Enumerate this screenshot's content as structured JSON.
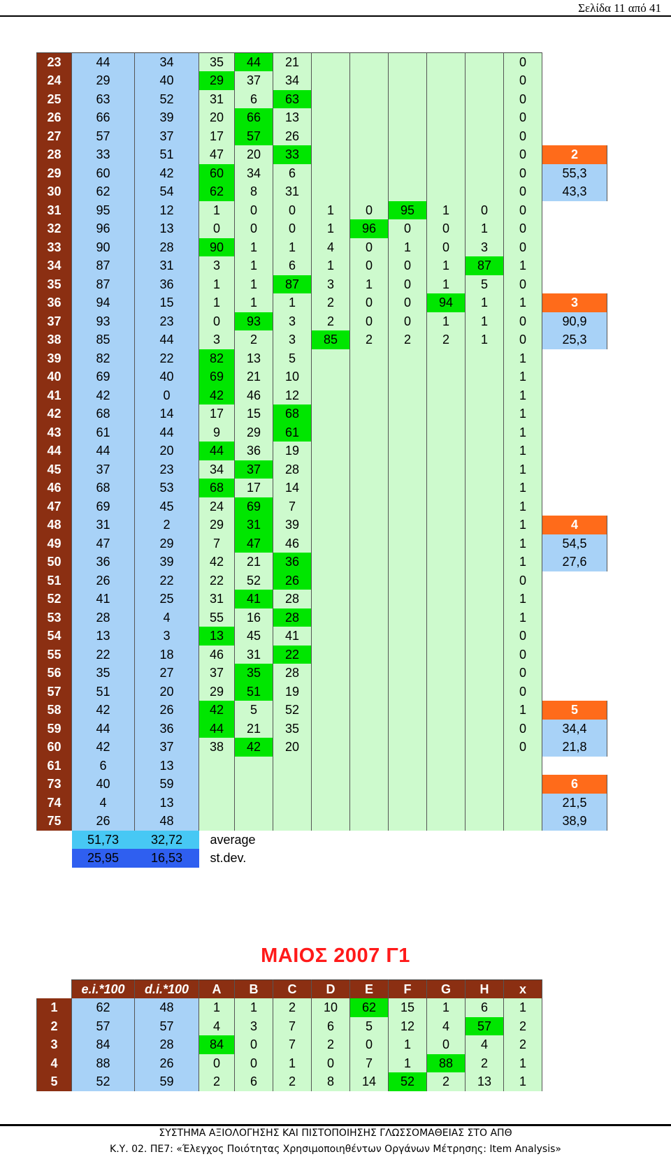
{
  "page_number": "Σελίδα 11 από 41",
  "table1": {
    "rows": [
      {
        "i": "23",
        "ei": "44",
        "di": "34",
        "A": "35",
        "B": "44",
        "C": "21",
        "D": "",
        "E": "",
        "F": "",
        "G": "",
        "H": "",
        "x": "0",
        "note": "",
        "hl": "B",
        "nt": ""
      },
      {
        "i": "24",
        "ei": "29",
        "di": "40",
        "A": "29",
        "B": "37",
        "C": "34",
        "D": "",
        "E": "",
        "F": "",
        "G": "",
        "H": "",
        "x": "0",
        "note": "",
        "hl": "A",
        "nt": ""
      },
      {
        "i": "25",
        "ei": "63",
        "di": "52",
        "A": "31",
        "B": "6",
        "C": "63",
        "D": "",
        "E": "",
        "F": "",
        "G": "",
        "H": "",
        "x": "0",
        "note": "",
        "hl": "C",
        "nt": ""
      },
      {
        "i": "26",
        "ei": "66",
        "di": "39",
        "A": "20",
        "B": "66",
        "C": "13",
        "D": "",
        "E": "",
        "F": "",
        "G": "",
        "H": "",
        "x": "0",
        "note": "",
        "hl": "B",
        "nt": ""
      },
      {
        "i": "27",
        "ei": "57",
        "di": "37",
        "A": "17",
        "B": "57",
        "C": "26",
        "D": "",
        "E": "",
        "F": "",
        "G": "",
        "H": "",
        "x": "0",
        "note": "",
        "hl": "B",
        "nt": ""
      },
      {
        "i": "28",
        "ei": "33",
        "di": "51",
        "A": "47",
        "B": "20",
        "C": "33",
        "D": "",
        "E": "",
        "F": "",
        "G": "",
        "H": "",
        "x": "0",
        "note": "2",
        "hl": "C",
        "nt": "orange"
      },
      {
        "i": "29",
        "ei": "60",
        "di": "42",
        "A": "60",
        "B": "34",
        "C": "6",
        "D": "",
        "E": "",
        "F": "",
        "G": "",
        "H": "",
        "x": "0",
        "note": "55,3",
        "hl": "A",
        "nt": "blue"
      },
      {
        "i": "30",
        "ei": "62",
        "di": "54",
        "A": "62",
        "B": "8",
        "C": "31",
        "D": "",
        "E": "",
        "F": "",
        "G": "",
        "H": "",
        "x": "0",
        "note": "43,3",
        "hl": "A",
        "nt": "blue"
      },
      {
        "i": "31",
        "ei": "95",
        "di": "12",
        "A": "1",
        "B": "0",
        "C": "0",
        "D": "1",
        "E": "0",
        "F": "95",
        "G": "1",
        "H": "0",
        "x": "0",
        "note": "",
        "hl": "F",
        "nt": ""
      },
      {
        "i": "32",
        "ei": "96",
        "di": "13",
        "A": "0",
        "B": "0",
        "C": "0",
        "D": "1",
        "E": "96",
        "F": "0",
        "G": "0",
        "H": "1",
        "x": "0",
        "note": "",
        "hl": "E",
        "nt": ""
      },
      {
        "i": "33",
        "ei": "90",
        "di": "28",
        "A": "90",
        "B": "1",
        "C": "1",
        "D": "4",
        "E": "0",
        "F": "1",
        "G": "0",
        "H": "3",
        "x": "0",
        "note": "",
        "hl": "A",
        "nt": ""
      },
      {
        "i": "34",
        "ei": "87",
        "di": "31",
        "A": "3",
        "B": "1",
        "C": "6",
        "D": "1",
        "E": "0",
        "F": "0",
        "G": "1",
        "H": "87",
        "x": "1",
        "note": "",
        "hl": "H",
        "nt": ""
      },
      {
        "i": "35",
        "ei": "87",
        "di": "36",
        "A": "1",
        "B": "1",
        "C": "87",
        "D": "3",
        "E": "1",
        "F": "0",
        "G": "1",
        "H": "5",
        "x": "0",
        "note": "",
        "hl": "C",
        "nt": ""
      },
      {
        "i": "36",
        "ei": "94",
        "di": "15",
        "A": "1",
        "B": "1",
        "C": "1",
        "D": "2",
        "E": "0",
        "F": "0",
        "G": "94",
        "H": "1",
        "x": "1",
        "note": "3",
        "hl": "G",
        "nt": "orange"
      },
      {
        "i": "37",
        "ei": "93",
        "di": "23",
        "A": "0",
        "B": "93",
        "C": "3",
        "D": "2",
        "E": "0",
        "F": "0",
        "G": "1",
        "H": "1",
        "x": "0",
        "note": "90,9",
        "hl": "B",
        "nt": "blue"
      },
      {
        "i": "38",
        "ei": "85",
        "di": "44",
        "A": "3",
        "B": "2",
        "C": "3",
        "D": "85",
        "E": "2",
        "F": "2",
        "G": "2",
        "H": "1",
        "x": "0",
        "note": "25,3",
        "hl": "D",
        "nt": "blue"
      },
      {
        "i": "39",
        "ei": "82",
        "di": "22",
        "A": "82",
        "B": "13",
        "C": "5",
        "D": "",
        "E": "",
        "F": "",
        "G": "",
        "H": "",
        "x": "1",
        "note": "",
        "hl": "A",
        "nt": ""
      },
      {
        "i": "40",
        "ei": "69",
        "di": "40",
        "A": "69",
        "B": "21",
        "C": "10",
        "D": "",
        "E": "",
        "F": "",
        "G": "",
        "H": "",
        "x": "1",
        "note": "",
        "hl": "A",
        "nt": ""
      },
      {
        "i": "41",
        "ei": "42",
        "di": "0",
        "A": "42",
        "B": "46",
        "C": "12",
        "D": "",
        "E": "",
        "F": "",
        "G": "",
        "H": "",
        "x": "1",
        "note": "",
        "hl": "A",
        "nt": ""
      },
      {
        "i": "42",
        "ei": "68",
        "di": "14",
        "A": "17",
        "B": "15",
        "C": "68",
        "D": "",
        "E": "",
        "F": "",
        "G": "",
        "H": "",
        "x": "1",
        "note": "",
        "hl": "C",
        "nt": ""
      },
      {
        "i": "43",
        "ei": "61",
        "di": "44",
        "A": "9",
        "B": "29",
        "C": "61",
        "D": "",
        "E": "",
        "F": "",
        "G": "",
        "H": "",
        "x": "1",
        "note": "",
        "hl": "C",
        "nt": ""
      },
      {
        "i": "44",
        "ei": "44",
        "di": "20",
        "A": "44",
        "B": "36",
        "C": "19",
        "D": "",
        "E": "",
        "F": "",
        "G": "",
        "H": "",
        "x": "1",
        "note": "",
        "hl": "A",
        "nt": ""
      },
      {
        "i": "45",
        "ei": "37",
        "di": "23",
        "A": "34",
        "B": "37",
        "C": "28",
        "D": "",
        "E": "",
        "F": "",
        "G": "",
        "H": "",
        "x": "1",
        "note": "",
        "hl": "B",
        "nt": ""
      },
      {
        "i": "46",
        "ei": "68",
        "di": "53",
        "A": "68",
        "B": "17",
        "C": "14",
        "D": "",
        "E": "",
        "F": "",
        "G": "",
        "H": "",
        "x": "1",
        "note": "",
        "hl": "A",
        "nt": ""
      },
      {
        "i": "47",
        "ei": "69",
        "di": "45",
        "A": "24",
        "B": "69",
        "C": "7",
        "D": "",
        "E": "",
        "F": "",
        "G": "",
        "H": "",
        "x": "1",
        "note": "",
        "hl": "B",
        "nt": ""
      },
      {
        "i": "48",
        "ei": "31",
        "di": "2",
        "A": "29",
        "B": "31",
        "C": "39",
        "D": "",
        "E": "",
        "F": "",
        "G": "",
        "H": "",
        "x": "1",
        "note": "4",
        "hl": "B",
        "nt": "orange"
      },
      {
        "i": "49",
        "ei": "47",
        "di": "29",
        "A": "7",
        "B": "47",
        "C": "46",
        "D": "",
        "E": "",
        "F": "",
        "G": "",
        "H": "",
        "x": "1",
        "note": "54,5",
        "hl": "B",
        "nt": "blue"
      },
      {
        "i": "50",
        "ei": "36",
        "di": "39",
        "A": "42",
        "B": "21",
        "C": "36",
        "D": "",
        "E": "",
        "F": "",
        "G": "",
        "H": "",
        "x": "1",
        "note": "27,6",
        "hl": "C",
        "nt": "blue"
      },
      {
        "i": "51",
        "ei": "26",
        "di": "22",
        "A": "22",
        "B": "52",
        "C": "26",
        "D": "",
        "E": "",
        "F": "",
        "G": "",
        "H": "",
        "x": "0",
        "note": "",
        "hl": "C",
        "nt": ""
      },
      {
        "i": "52",
        "ei": "41",
        "di": "25",
        "A": "31",
        "B": "41",
        "C": "28",
        "D": "",
        "E": "",
        "F": "",
        "G": "",
        "H": "",
        "x": "1",
        "note": "",
        "hl": "B",
        "nt": ""
      },
      {
        "i": "53",
        "ei": "28",
        "di": "4",
        "A": "55",
        "B": "16",
        "C": "28",
        "D": "",
        "E": "",
        "F": "",
        "G": "",
        "H": "",
        "x": "1",
        "note": "",
        "hl": "C",
        "nt": ""
      },
      {
        "i": "54",
        "ei": "13",
        "di": "3",
        "A": "13",
        "B": "45",
        "C": "41",
        "D": "",
        "E": "",
        "F": "",
        "G": "",
        "H": "",
        "x": "0",
        "note": "",
        "hl": "A",
        "nt": ""
      },
      {
        "i": "55",
        "ei": "22",
        "di": "18",
        "A": "46",
        "B": "31",
        "C": "22",
        "D": "",
        "E": "",
        "F": "",
        "G": "",
        "H": "",
        "x": "0",
        "note": "",
        "hl": "C",
        "nt": ""
      },
      {
        "i": "56",
        "ei": "35",
        "di": "27",
        "A": "37",
        "B": "35",
        "C": "28",
        "D": "",
        "E": "",
        "F": "",
        "G": "",
        "H": "",
        "x": "0",
        "note": "",
        "hl": "B",
        "nt": ""
      },
      {
        "i": "57",
        "ei": "51",
        "di": "20",
        "A": "29",
        "B": "51",
        "C": "19",
        "D": "",
        "E": "",
        "F": "",
        "G": "",
        "H": "",
        "x": "0",
        "note": "",
        "hl": "B",
        "nt": ""
      },
      {
        "i": "58",
        "ei": "42",
        "di": "26",
        "A": "42",
        "B": "5",
        "C": "52",
        "D": "",
        "E": "",
        "F": "",
        "G": "",
        "H": "",
        "x": "1",
        "note": "5",
        "hl": "A",
        "nt": "orange"
      },
      {
        "i": "59",
        "ei": "44",
        "di": "36",
        "A": "44",
        "B": "21",
        "C": "35",
        "D": "",
        "E": "",
        "F": "",
        "G": "",
        "H": "",
        "x": "0",
        "note": "34,4",
        "hl": "A",
        "nt": "blue"
      },
      {
        "i": "60",
        "ei": "42",
        "di": "37",
        "A": "38",
        "B": "42",
        "C": "20",
        "D": "",
        "E": "",
        "F": "",
        "G": "",
        "H": "",
        "x": "0",
        "note": "21,8",
        "hl": "B",
        "nt": "blue"
      },
      {
        "i": "61",
        "ei": "6",
        "di": "13",
        "A": "",
        "B": "",
        "C": "",
        "D": "",
        "E": "",
        "F": "",
        "G": "",
        "H": "",
        "x": "",
        "note": "",
        "hl": "",
        "nt": ""
      },
      {
        "i": "73",
        "ei": "40",
        "di": "59",
        "A": "",
        "B": "",
        "C": "",
        "D": "",
        "E": "",
        "F": "",
        "G": "",
        "H": "",
        "x": "",
        "note": "6",
        "hl": "",
        "nt": "orange"
      },
      {
        "i": "74",
        "ei": "4",
        "di": "13",
        "A": "",
        "B": "",
        "C": "",
        "D": "",
        "E": "",
        "F": "",
        "G": "",
        "H": "",
        "x": "",
        "note": "21,5",
        "hl": "",
        "nt": "blue"
      },
      {
        "i": "75",
        "ei": "26",
        "di": "48",
        "A": "",
        "B": "",
        "C": "",
        "D": "",
        "E": "",
        "F": "",
        "G": "",
        "H": "",
        "x": "",
        "note": "38,9",
        "hl": "",
        "nt": "blue"
      }
    ],
    "average": {
      "ei": "51,73",
      "di": "32,72",
      "label": "average"
    },
    "stdev": {
      "ei": "25,95",
      "di": "16,53",
      "label": "st.dev."
    }
  },
  "section_title": "ΜΑΙΟΣ 2007 Γ1",
  "table2": {
    "headers": [
      "e.i.*100",
      "d.i.*100",
      "A",
      "B",
      "C",
      "D",
      "E",
      "F",
      "G",
      "H",
      "x"
    ],
    "rows": [
      {
        "i": "1",
        "ei": "62",
        "di": "48",
        "A": "1",
        "B": "1",
        "C": "2",
        "D": "10",
        "E": "62",
        "F": "15",
        "G": "1",
        "H": "6",
        "x": "1",
        "hl": "E"
      },
      {
        "i": "2",
        "ei": "57",
        "di": "57",
        "A": "4",
        "B": "3",
        "C": "7",
        "D": "6",
        "E": "5",
        "F": "12",
        "G": "4",
        "H": "57",
        "x": "2",
        "hl": "H"
      },
      {
        "i": "3",
        "ei": "84",
        "di": "28",
        "A": "84",
        "B": "0",
        "C": "7",
        "D": "2",
        "E": "0",
        "F": "1",
        "G": "0",
        "H": "4",
        "x": "2",
        "hl": "A"
      },
      {
        "i": "4",
        "ei": "88",
        "di": "26",
        "A": "0",
        "B": "0",
        "C": "1",
        "D": "0",
        "E": "7",
        "F": "1",
        "G": "88",
        "H": "2",
        "x": "1",
        "hl": "G"
      },
      {
        "i": "5",
        "ei": "52",
        "di": "59",
        "A": "2",
        "B": "6",
        "C": "2",
        "D": "8",
        "E": "14",
        "F": "52",
        "G": "2",
        "H": "13",
        "x": "1",
        "hl": "F"
      }
    ]
  },
  "footer": {
    "line1": "ΣΥΣΤΗΜΑ ΑΞΙΟΛΟΓΗΣΗΣ ΚΑΙ ΠΙΣΤΟΠΟΙΗΣΗΣ ΓΛΩΣΣΟΜΑΘΕΙΑΣ ΣΤΟ ΑΠΘ",
    "line2": "Κ.Υ. 02.   ΠΕ7: «Έλεγχος Ποιότητας Χρησιμοποιηθέντων Οργάνων Μέτρησης: Item Analysis»"
  }
}
